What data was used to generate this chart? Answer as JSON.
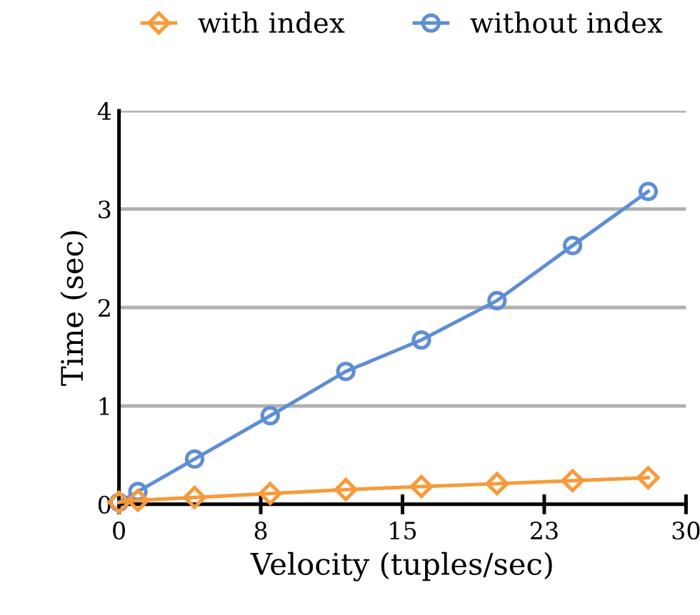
{
  "chart_data": {
    "type": "line",
    "xlabel": "Velocity (tuples/sec)",
    "ylabel": "Time (sec)",
    "x": [
      0,
      1,
      4,
      8,
      12,
      16,
      20,
      24,
      28
    ],
    "series": [
      {
        "name": "with index",
        "color": "#f79a3a",
        "marker": "diamond",
        "values": [
          0.02,
          0.04,
          0.07,
          0.11,
          0.15,
          0.18,
          0.21,
          0.24,
          0.27
        ]
      },
      {
        "name": "without index",
        "color": "#5f8ed3",
        "marker": "circle",
        "values": [
          0.02,
          0.13,
          0.46,
          0.9,
          1.35,
          1.67,
          2.07,
          2.63,
          3.18
        ]
      }
    ],
    "xlim": [
      0,
      30
    ],
    "xticks": [
      0,
      {
        "value": 7.5,
        "label": "8"
      },
      15,
      {
        "value": 22.5,
        "label": "23"
      },
      30
    ],
    "ylim": [
      0,
      4
    ],
    "yticks": [
      0,
      1,
      2,
      3,
      4
    ],
    "grid": "y",
    "legend": "top",
    "line_style": "solid"
  }
}
